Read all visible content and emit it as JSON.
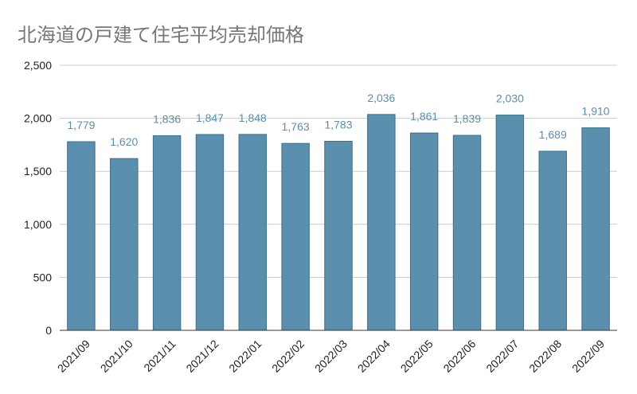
{
  "chart_data": {
    "type": "bar",
    "title": "北海道の戸建て住宅平均売却価格",
    "categories": [
      "2021/09",
      "2021/10",
      "2021/11",
      "2021/12",
      "2022/01",
      "2022/02",
      "2022/03",
      "2022/04",
      "2022/05",
      "2022/06",
      "2022/07",
      "2022/08",
      "2022/09"
    ],
    "values": [
      1779,
      1620,
      1836,
      1847,
      1848,
      1763,
      1783,
      2036,
      1861,
      1839,
      2030,
      1689,
      1910
    ],
    "data_labels": [
      "1,779",
      "1,620",
      "1,836",
      "1,847",
      "1,848",
      "1,763",
      "1,783",
      "2,036",
      "1,861",
      "1,839",
      "2,030",
      "1,689",
      "1,910"
    ],
    "ylim": [
      0,
      2500
    ],
    "yticks": [
      0,
      500,
      1000,
      1500,
      2000,
      2500
    ],
    "ytick_labels": [
      "0",
      "500",
      "1,000",
      "1,500",
      "2,000",
      "2,500"
    ],
    "grid": true,
    "legend": "none",
    "xlabel": "",
    "ylabel": "",
    "colors": {
      "bar": "#5a8fae",
      "bar_stroke": "#3d6f8e",
      "label": "#5a8fae",
      "grid": "#cccccc",
      "axis": "#333333"
    }
  }
}
